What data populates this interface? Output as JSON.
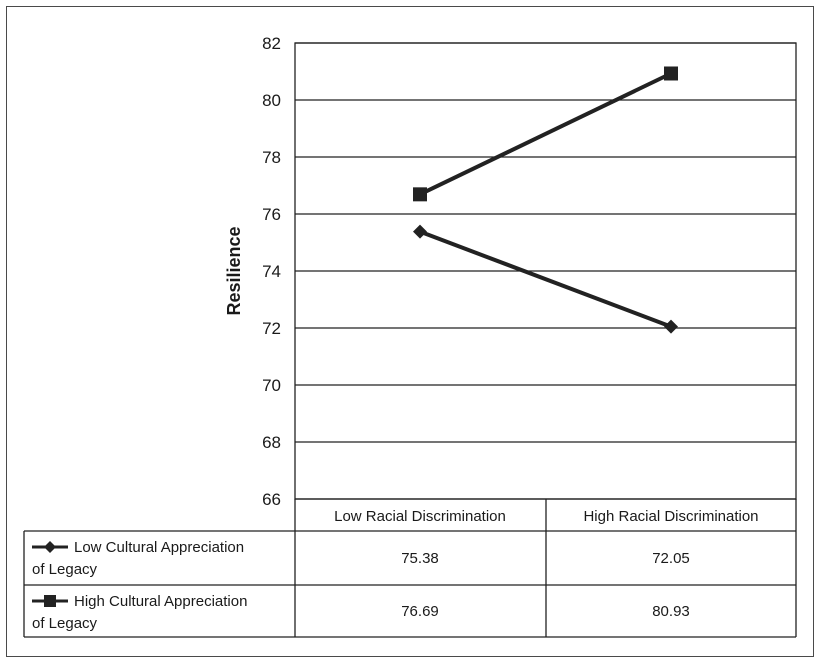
{
  "chart_data": {
    "type": "line",
    "ylabel": "Resilience",
    "ylim": [
      66,
      82
    ],
    "yticks": [
      "82",
      "80",
      "78",
      "76",
      "74",
      "72",
      "70",
      "68",
      "66"
    ],
    "categories": [
      "Low Racial Discrimination",
      "High Racial Discrimination"
    ],
    "grid": "horizontal",
    "legend": "table-below",
    "series": [
      {
        "name_lines": [
          "Low Cultural Appreciation",
          "of Legacy"
        ],
        "marker": "diamond",
        "values": [
          75.38,
          72.05
        ],
        "labels": [
          "75.38",
          "72.05"
        ],
        "color": "#222222"
      },
      {
        "name_lines": [
          "High Cultural Appreciation",
          "of Legacy"
        ],
        "marker": "square",
        "values": [
          76.69,
          80.93
        ],
        "labels": [
          "76.69",
          "80.93"
        ],
        "color": "#222222"
      }
    ]
  }
}
